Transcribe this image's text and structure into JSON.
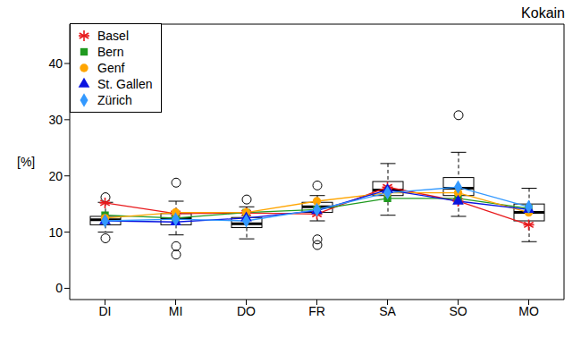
{
  "chart_data": {
    "type": "boxplot",
    "title": "Kokain",
    "y_label": "[%]",
    "categories": [
      "DI",
      "MI",
      "DO",
      "FR",
      "SA",
      "SO",
      "MO"
    ],
    "boxes": [
      {
        "whisker_low": 10,
        "q1": 11.3,
        "median": 12.2,
        "q3": 12.8,
        "whisker_high": 15.3,
        "outliers": [
          16.2,
          8.9
        ]
      },
      {
        "whisker_low": 9.5,
        "q1": 11.3,
        "median": 12.4,
        "q3": 13.3,
        "whisker_high": 15.5,
        "outliers": [
          18.8,
          7.5,
          6
        ]
      },
      {
        "whisker_low": 8.8,
        "q1": 10.8,
        "median": 11.5,
        "q3": 12.6,
        "whisker_high": 14.5,
        "outliers": [
          15.8
        ]
      },
      {
        "whisker_low": 12,
        "q1": 13.5,
        "median": 14.5,
        "q3": 15.3,
        "whisker_high": 16.5,
        "outliers": [
          18.3,
          8.7,
          7.7
        ]
      },
      {
        "whisker_low": 13,
        "q1": 16.5,
        "median": 17.5,
        "q3": 19,
        "whisker_high": 22.2,
        "outliers": []
      },
      {
        "whisker_low": 12.8,
        "q1": 16.5,
        "median": 17.8,
        "q3": 19.7,
        "whisker_high": 24.2,
        "outliers": [
          30.8
        ]
      },
      {
        "whisker_low": 8.3,
        "q1": 12,
        "median": 13.5,
        "q3": 15,
        "whisker_high": 17.8,
        "outliers": []
      }
    ],
    "series": [
      {
        "name": "Basel",
        "type": "line",
        "color": "#e8191c",
        "marker": "asterisk",
        "values": [
          15.2,
          13.3,
          13.4,
          13.2,
          18,
          15.5,
          11.3
        ]
      },
      {
        "name": "Bern",
        "type": "line",
        "color": "#1f9a1f",
        "marker": "square",
        "values": [
          13,
          12.5,
          13.5,
          14,
          16,
          16,
          14.2
        ]
      },
      {
        "name": "Genf",
        "type": "line",
        "color": "#ffa500",
        "marker": "circle",
        "values": [
          12.5,
          13.5,
          13.5,
          15.5,
          17,
          17,
          13.5
        ]
      },
      {
        "name": "St. Gallen",
        "type": "line",
        "color": "#0a14e0",
        "marker": "triangle",
        "values": [
          12,
          11.8,
          12.5,
          13.8,
          17.5,
          15.5,
          14
        ]
      },
      {
        "name": "Zürich",
        "type": "line",
        "color": "#3399ff",
        "marker": "diamond",
        "values": [
          12,
          12.3,
          12,
          14,
          17,
          18,
          14.5
        ]
      }
    ],
    "ylim": [
      -2,
      47
    ],
    "yticks": [
      0,
      10,
      20,
      30,
      40
    ],
    "legend": "upper left"
  }
}
